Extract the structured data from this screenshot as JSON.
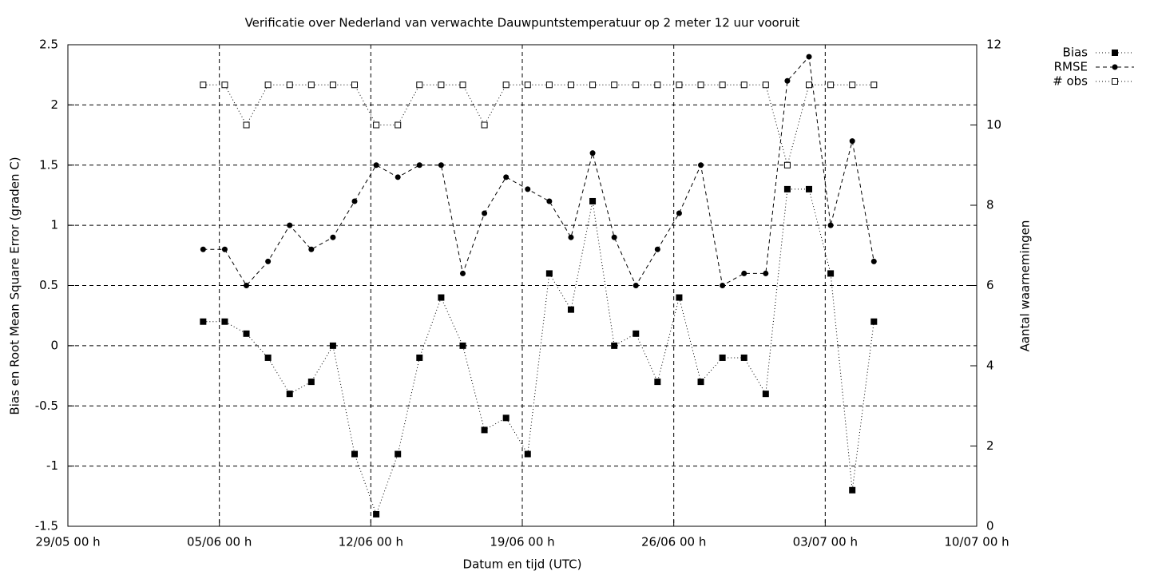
{
  "chart_data": {
    "type": "line",
    "title": "Verificatie over Nederland van verwachte Dauwpuntstemperatuur op 2 meter 12 uur vooruit",
    "x_label": "Datum en tijd (UTC)",
    "y_label": "Bias en Root Mean Square Error (graden C)",
    "y2_label": "Aantal waarnemingen",
    "x": [
      6.25,
      7.25,
      8.25,
      9.25,
      10.25,
      11.25,
      12.25,
      13.25,
      14.25,
      15.25,
      16.25,
      17.25,
      18.25,
      19.25,
      20.25,
      21.25,
      22.25,
      23.25,
      24.25,
      25.25,
      26.25,
      27.25,
      28.25,
      29.25,
      30.25,
      31.25,
      32.25,
      33.25,
      34.25,
      35.25,
      36.25,
      37.25
    ],
    "xlim": [
      0,
      42
    ],
    "xticks": [
      {
        "value": 0,
        "label": "29/05 00 h"
      },
      {
        "value": 7,
        "label": "05/06 00 h"
      },
      {
        "value": 14,
        "label": "12/06 00 h"
      },
      {
        "value": 21,
        "label": "19/06 00 h"
      },
      {
        "value": 28,
        "label": "26/06 00 h"
      },
      {
        "value": 35,
        "label": "03/07 00 h"
      },
      {
        "value": 42,
        "label": "10/07 00 h"
      }
    ],
    "ylim": [
      -1.5,
      2.5
    ],
    "yticks": [
      -1.5,
      -1,
      -0.5,
      0,
      0.5,
      1,
      1.5,
      2,
      2.5
    ],
    "y2lim": [
      0,
      12
    ],
    "y2ticks": [
      0,
      2,
      4,
      6,
      8,
      10,
      12
    ],
    "grid": true,
    "legend": "outside-top-right",
    "series": [
      {
        "name": "Bias",
        "color": "#000000",
        "dash": "dotted",
        "marker": "filled-square",
        "values": [
          0.2,
          0.2,
          0.1,
          -0.1,
          -0.4,
          -0.3,
          0,
          -0.9,
          -1.4,
          -0.9,
          -0.1,
          0.4,
          0,
          -0.7,
          -0.6,
          -0.9,
          0.6,
          0.3,
          1.2,
          0,
          0.1,
          -0.3,
          0.4,
          -0.3,
          -0.1,
          -0.1,
          -0.4,
          1.3,
          1.3,
          0.6,
          -1.2,
          0.2
        ]
      },
      {
        "name": "RMSE",
        "color": "#000000",
        "dash": "dashed",
        "marker": "filled-circle",
        "values": [
          0.8,
          0.8,
          0.5,
          0.7,
          1.0,
          0.8,
          0.9,
          1.2,
          1.5,
          1.4,
          1.5,
          1.5,
          0.6,
          1.1,
          1.4,
          1.3,
          1.2,
          0.9,
          1.6,
          0.9,
          0.5,
          0.8,
          1.1,
          1.5,
          0.5,
          0.6,
          0.6,
          2.2,
          2.4,
          1.0,
          1.7,
          0.7
        ]
      },
      {
        "name": "# obs",
        "color": "#000000",
        "dash": "dotted",
        "marker": "open-square",
        "axis": "y2",
        "values": [
          11,
          11,
          10,
          11,
          11,
          11,
          11,
          11,
          10,
          10,
          11,
          11,
          11,
          10,
          11,
          11,
          11,
          11,
          11,
          11,
          11,
          11,
          11,
          11,
          11,
          11,
          11,
          9,
          11,
          11,
          11,
          11
        ]
      }
    ]
  }
}
